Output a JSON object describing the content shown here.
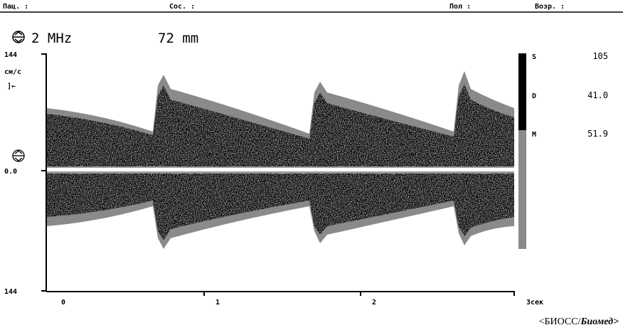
{
  "header": {
    "patient": "Пац. :",
    "condition": "Сос. :",
    "sex": "Пол :",
    "age": "Возр. :"
  },
  "probe": {
    "frequency": "2 MHz",
    "depth": "72 mm"
  },
  "axis": {
    "top": "144",
    "unit": "см/с",
    "marker": "]←",
    "baseline": "0.0",
    "bottom": "144",
    "x_labels": [
      "0",
      "1",
      "2",
      "3сек"
    ]
  },
  "measurements": [
    {
      "label": "S",
      "value": "105"
    },
    {
      "label": "D",
      "value": "41.0"
    },
    {
      "label": "M",
      "value": "51.9"
    }
  ],
  "footer": {
    "brand": "<БИОСС/",
    "product": "Биомед>"
  }
}
